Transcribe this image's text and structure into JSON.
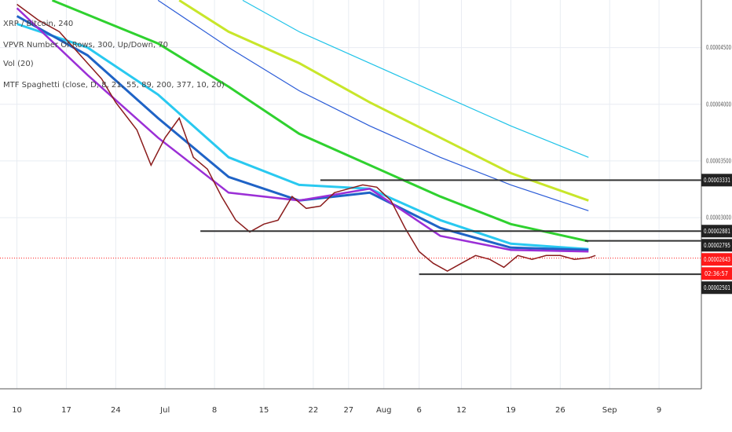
{
  "chart_data": {
    "type": "line",
    "title": "XRP / Bitcoin, 240",
    "indicators": [
      "VPVR Number Of Rows, 300, Up/Down, 70",
      "Vol (20)",
      "MTF Spaghetti (close, D, 8, 21, 55, 89, 200, 377, 10, 20)"
    ],
    "xlim": [
      -2.4,
      97
    ],
    "xticks": [
      {
        "value": 0,
        "label": "10"
      },
      {
        "value": 7,
        "label": "17"
      },
      {
        "value": 14,
        "label": "24"
      },
      {
        "value": 21,
        "label": "Jul"
      },
      {
        "value": 28,
        "label": "8"
      },
      {
        "value": 35,
        "label": "15"
      },
      {
        "value": 42,
        "label": "22"
      },
      {
        "value": 47,
        "label": "27"
      },
      {
        "value": 52,
        "label": "Aug"
      },
      {
        "value": 57,
        "label": "6"
      },
      {
        "value": 63,
        "label": "12"
      },
      {
        "value": 70,
        "label": "19"
      },
      {
        "value": 77,
        "label": "26"
      },
      {
        "value": 84,
        "label": "Sep"
      },
      {
        "value": 91,
        "label": "9"
      }
    ],
    "ylim": [
      1.49e-05,
      4.92e-05
    ],
    "yticks": [
      {
        "value": 4.5e-05,
        "label": "0.00004500"
      },
      {
        "value": 4e-05,
        "label": "0.00004000"
      },
      {
        "value": 3.5e-05,
        "label": "0.00003500"
      },
      {
        "value": 3e-05,
        "label": "0.00003000"
      }
    ],
    "grid": true,
    "series": [
      {
        "color": "#1fc3e8",
        "width": 1.2,
        "x": [
          32,
          40,
          50,
          60,
          70,
          81
        ],
        "values": [
          4.917e-05,
          4.64e-05,
          4.363e-05,
          4.086e-05,
          3.809e-05,
          3.532e-05
        ]
      },
      {
        "color": "#2a5bd7",
        "width": 1.2,
        "x": [
          20,
          30,
          40,
          50,
          60,
          70,
          81
        ],
        "values": [
          4.917e-05,
          4.501e-05,
          4.12e-05,
          3.809e-05,
          3.532e-05,
          3.289e-05,
          3.061e-05
        ]
      },
      {
        "color": "#c8e62a",
        "width": 3,
        "x": [
          23,
          30,
          40,
          50,
          60,
          70,
          81
        ],
        "values": [
          4.917e-05,
          4.64e-05,
          4.363e-05,
          4.017e-05,
          3.705e-05,
          3.393e-05,
          3.151e-05
        ]
      },
      {
        "color": "#2fd12f",
        "width": 3,
        "x": [
          5,
          20,
          30,
          40,
          50,
          60,
          70,
          81
        ],
        "values": [
          4.917e-05,
          4.536e-05,
          4.155e-05,
          3.74e-05,
          3.463e-05,
          3.186e-05,
          2.943e-05,
          2.791e-05
        ]
      },
      {
        "color": "#29c9f0",
        "width": 3,
        "x": [
          0,
          10,
          20,
          30,
          40,
          50,
          60,
          70,
          81
        ],
        "values": [
          4.709e-05,
          4.501e-05,
          4.086e-05,
          3.532e-05,
          3.289e-05,
          3.255e-05,
          2.978e-05,
          2.77e-05,
          2.722e-05
        ]
      },
      {
        "color": "#1f63c6",
        "width": 3,
        "x": [
          0,
          10,
          20,
          30,
          40,
          50,
          60,
          70,
          81
        ],
        "values": [
          4.778e-05,
          4.432e-05,
          3.878e-05,
          3.359e-05,
          3.151e-05,
          3.22e-05,
          2.909e-05,
          2.735e-05,
          2.715e-05
        ]
      },
      {
        "color": "#9b2fd6",
        "width": 2.5,
        "x": [
          0,
          10,
          20,
          30,
          40,
          50,
          60,
          70,
          81
        ],
        "values": [
          4.848e-05,
          4.259e-05,
          3.705e-05,
          3.22e-05,
          3.151e-05,
          3.255e-05,
          2.839e-05,
          2.715e-05,
          2.701e-05
        ]
      },
      {
        "color": "#8b1c1c",
        "width": 1.5,
        "x": [
          0,
          3,
          6,
          9,
          12,
          14,
          17,
          19,
          21,
          23,
          25,
          27,
          29,
          31,
          33,
          35,
          37,
          39,
          41,
          43,
          45,
          47,
          49,
          51,
          53,
          55,
          57,
          59,
          61,
          63,
          65,
          67,
          69,
          71,
          73,
          75,
          77,
          79,
          81,
          82
        ],
        "values": [
          4.882e-05,
          4.744e-05,
          4.64e-05,
          4.432e-05,
          4.224e-05,
          4.017e-05,
          3.774e-05,
          3.463e-05,
          3.705e-05,
          3.878e-05,
          3.532e-05,
          3.428e-05,
          3.186e-05,
          2.978e-05,
          2.874e-05,
          2.943e-05,
          2.978e-05,
          3.186e-05,
          3.082e-05,
          3.102e-05,
          3.22e-05,
          3.255e-05,
          3.289e-05,
          3.269e-05,
          3.151e-05,
          2.909e-05,
          2.701e-05,
          2.597e-05,
          2.528e-05,
          2.597e-05,
          2.666e-05,
          2.632e-05,
          2.562e-05,
          2.666e-05,
          2.632e-05,
          2.666e-05,
          2.666e-05,
          2.632e-05,
          2.645e-05,
          2.666e-05
        ]
      }
    ],
    "levels": [
      {
        "value": 3.331e-05,
        "label": "0.00003331",
        "start": 43
      },
      {
        "value": 2.881e-05,
        "label": "0.00002881",
        "start": 26
      },
      {
        "value": 2.795e-05,
        "label": "0.00002795",
        "start": 80.5
      },
      {
        "value": 2.501e-05,
        "label": "0.00002501",
        "start": 57
      }
    ],
    "last_price": {
      "value": 2.643e-05,
      "label": "0.00002643",
      "color": "#ff1a1a"
    },
    "countdown": "02:36:57"
  }
}
